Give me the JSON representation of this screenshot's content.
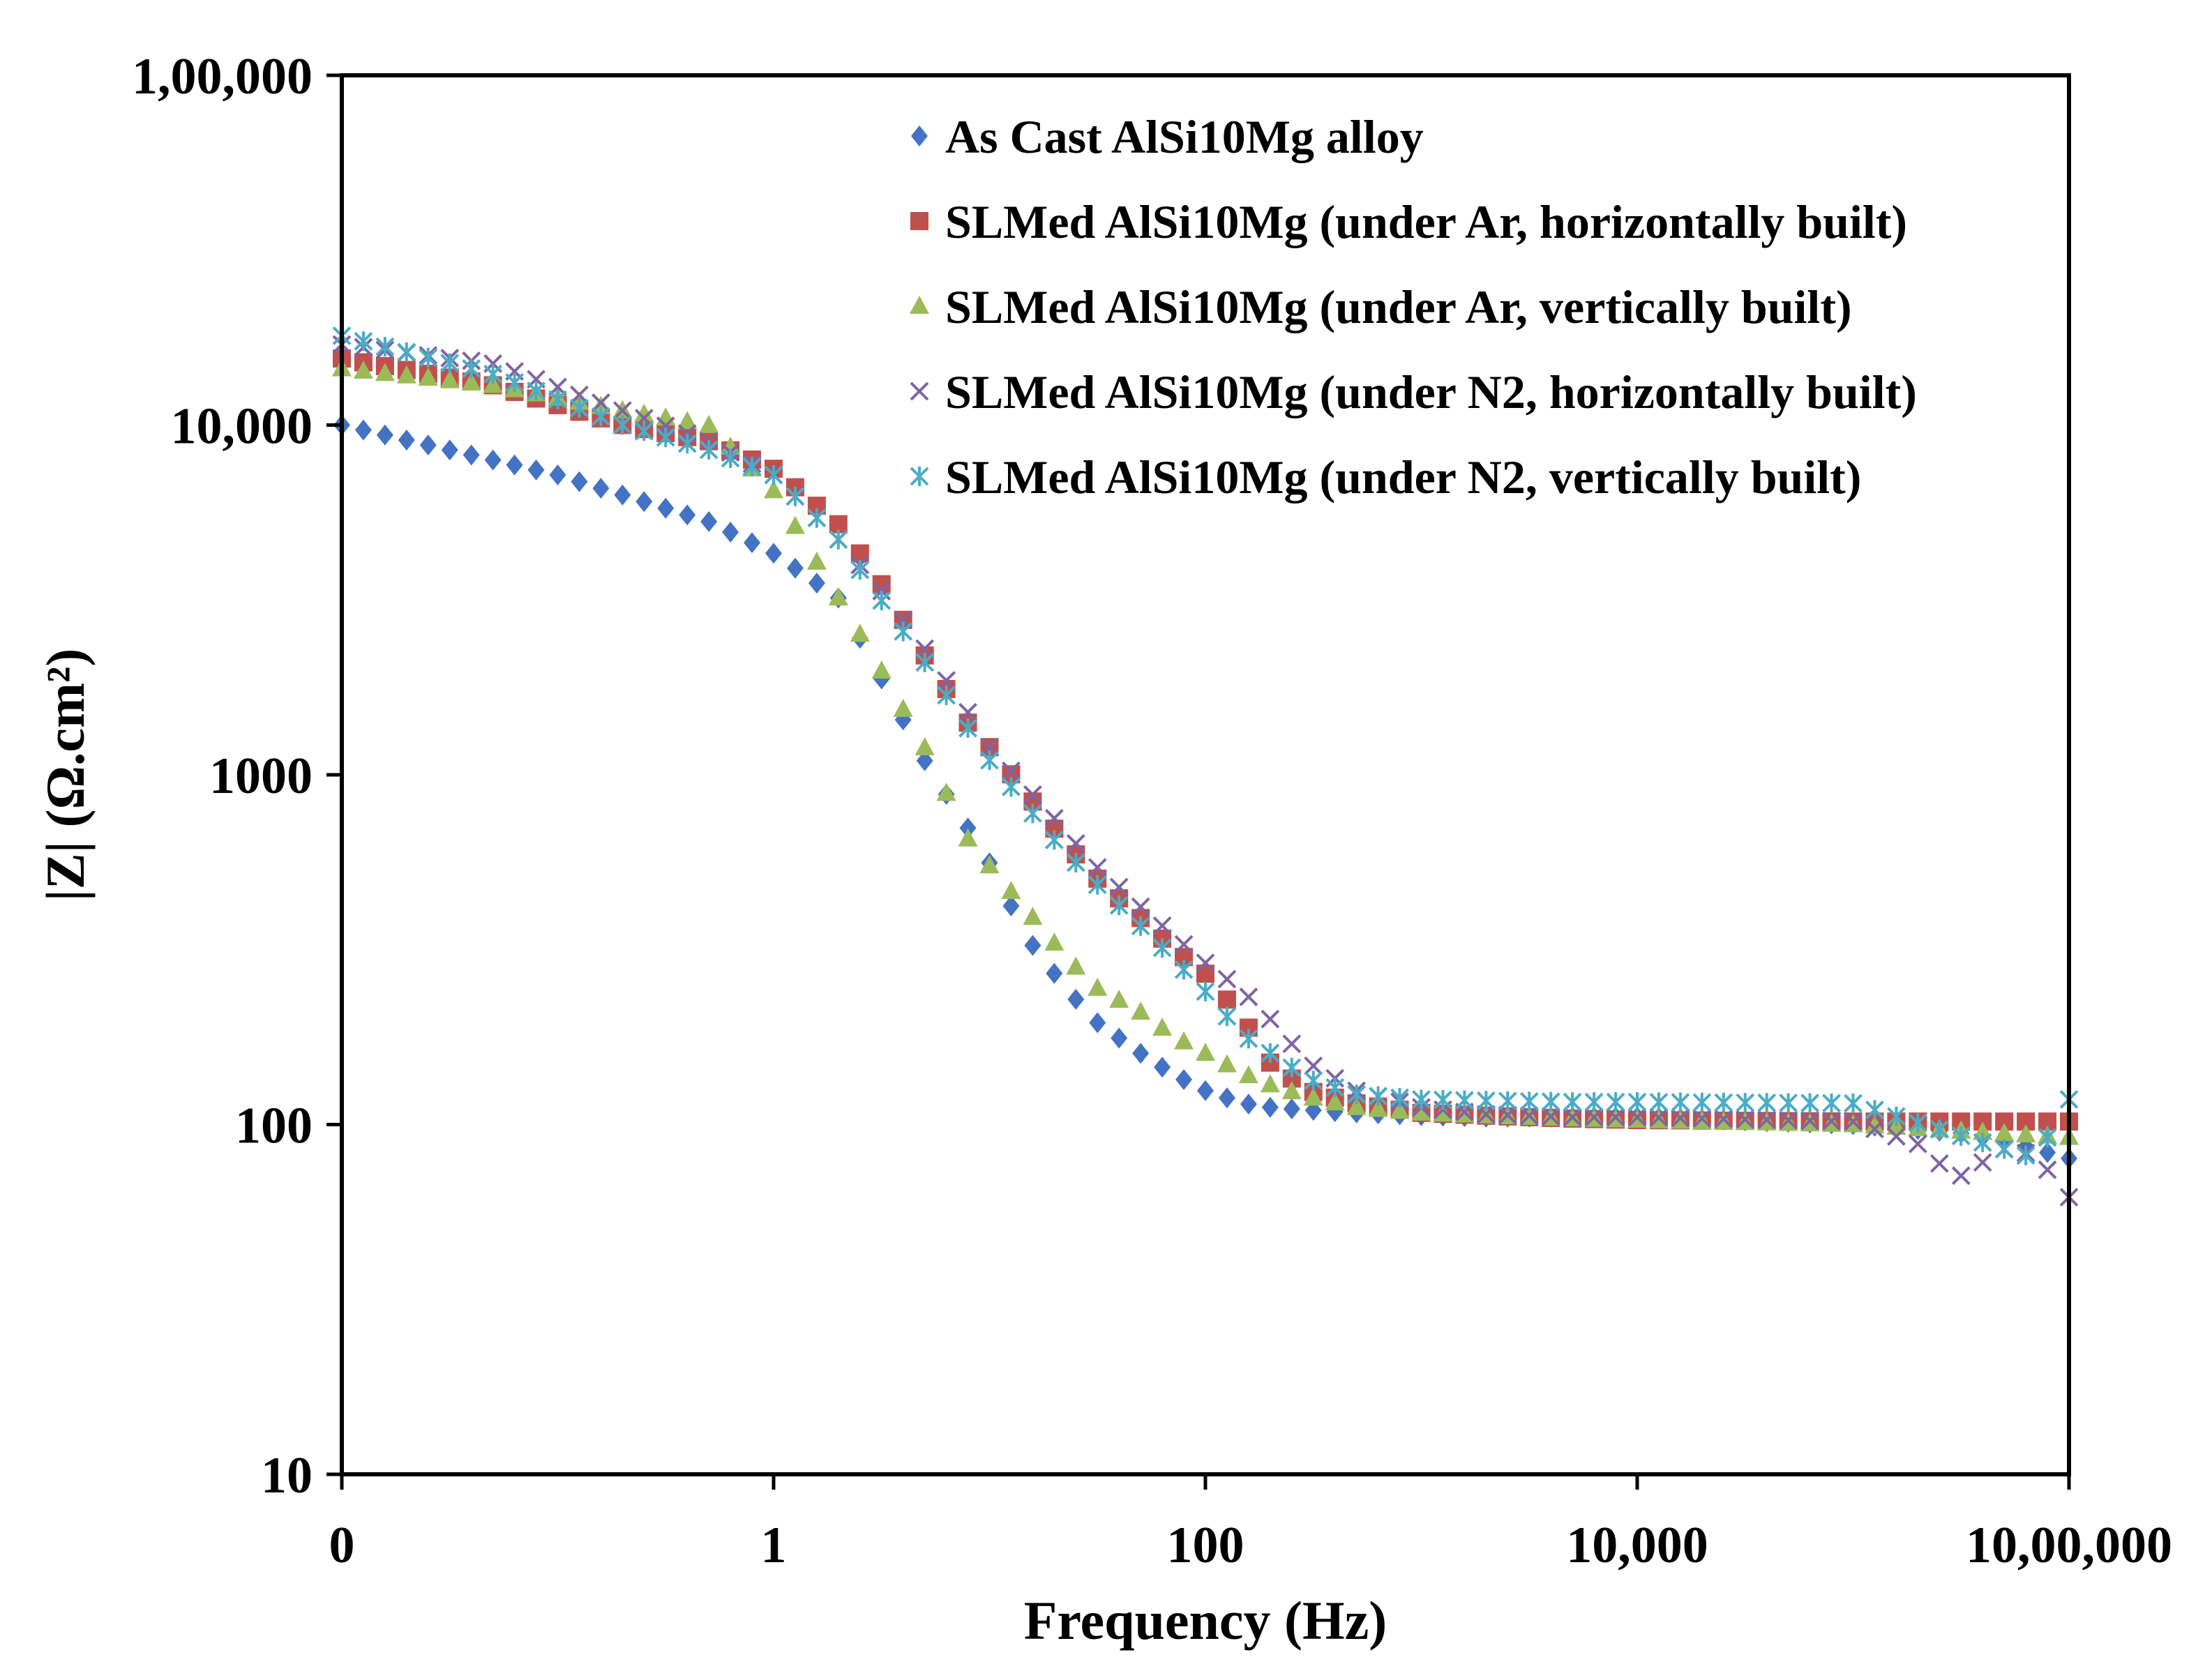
{
  "chart_data": {
    "type": "scatter",
    "xscale": "log",
    "yscale": "log",
    "xlim": [
      0.01,
      1000000
    ],
    "ylim": [
      10,
      100000
    ],
    "xlabel": "Frequency (Hz)",
    "ylabel": "|Z| (Ω.cm²)",
    "xticks": [
      {
        "value": 0.01,
        "label": "0"
      },
      {
        "value": 1,
        "label": "1"
      },
      {
        "value": 100,
        "label": "100"
      },
      {
        "value": 10000,
        "label": "10,000"
      },
      {
        "value": 1000000,
        "label": "10,00,000"
      }
    ],
    "yticks": [
      {
        "value": 10,
        "label": "10"
      },
      {
        "value": 100,
        "label": "100"
      },
      {
        "value": 1000,
        "label": "1000"
      },
      {
        "value": 10000,
        "label": "10,000"
      },
      {
        "value": 100000,
        "label": "1,00,000"
      }
    ],
    "grid": false,
    "legend_position": "top-right",
    "series": [
      {
        "name": "As Cast AlSi10Mg alloy",
        "marker": "diamond",
        "color": "#4472C4",
        "x": [
          0.01,
          0.1,
          0.5,
          1,
          2,
          3,
          5,
          8,
          10,
          15,
          20,
          30,
          50,
          70,
          100,
          150,
          200,
          300,
          500,
          1000,
          2000,
          5000,
          10000,
          100000,
          300000,
          500000,
          700000,
          1000000
        ],
        "y": [
          10000,
          7200,
          5300,
          4300,
          3200,
          2000,
          1100,
          700,
          560,
          340,
          270,
          200,
          160,
          140,
          125,
          115,
          112,
          110,
          108,
          106,
          105,
          105,
          105,
          100,
          95,
          90,
          85,
          80
        ]
      },
      {
        "name": "SLMed AlSi10Mg (under Ar, horizontally built)",
        "marker": "square",
        "color": "#C0504D",
        "x": [
          0.01,
          0.05,
          0.2,
          0.5,
          1,
          2,
          3,
          5,
          8,
          10,
          20,
          30,
          50,
          70,
          100,
          150,
          200,
          300,
          500,
          1000,
          2000,
          5000,
          10000,
          100000,
          1000000
        ],
        "y": [
          15500,
          13000,
          10000,
          9000,
          7500,
          5200,
          3700,
          2200,
          1400,
          1200,
          700,
          520,
          390,
          320,
          270,
          200,
          150,
          125,
          115,
          108,
          106,
          104,
          103,
          102,
          102
        ]
      },
      {
        "name": "SLMed AlSi10Mg (under Ar, vertically built)",
        "marker": "triangle",
        "color": "#9BBB59",
        "x": [
          0.01,
          0.05,
          0.2,
          0.5,
          1,
          2,
          3,
          5,
          8,
          10,
          20,
          30,
          50,
          70,
          100,
          150,
          200,
          300,
          500,
          1000,
          2000,
          5000,
          10000,
          100000,
          1000000
        ],
        "y": [
          14500,
          13000,
          11000,
          10000,
          6500,
          3200,
          2100,
          1200,
          650,
          550,
          330,
          250,
          210,
          180,
          160,
          140,
          130,
          120,
          112,
          108,
          106,
          104,
          103,
          100,
          92
        ]
      },
      {
        "name": "SLMed AlSi10Mg (under N2, horizontally built)",
        "marker": "x",
        "color": "#8064A2",
        "x": [
          0.01,
          0.05,
          0.2,
          0.5,
          1,
          2,
          3,
          5,
          8,
          10,
          20,
          30,
          50,
          70,
          100,
          150,
          200,
          300,
          500,
          1000,
          2000,
          5000,
          10000,
          100000,
          200000,
          300000,
          500000,
          700000,
          1000000
        ],
        "y": [
          17000,
          15000,
          11000,
          9000,
          7200,
          4700,
          3500,
          2300,
          1500,
          1200,
          750,
          560,
          420,
          350,
          290,
          240,
          200,
          150,
          125,
          112,
          107,
          105,
          105,
          102,
          88,
          70,
          85,
          82,
          62
        ]
      },
      {
        "name": "SLMed AlSi10Mg (under N2, vertically built)",
        "marker": "asterisk",
        "color": "#4BACC6",
        "x": [
          0.01,
          0.05,
          0.2,
          0.5,
          1,
          2,
          3,
          5,
          8,
          10,
          20,
          30,
          50,
          70,
          100,
          150,
          200,
          300,
          500,
          1000,
          2000,
          5000,
          10000,
          100000,
          700000,
          1000000
        ],
        "y": [
          18000,
          14000,
          10000,
          8500,
          7200,
          4700,
          3300,
          2100,
          1350,
          1100,
          650,
          500,
          370,
          300,
          240,
          180,
          160,
          135,
          122,
          118,
          117,
          116,
          116,
          115,
          80,
          118
        ]
      }
    ]
  }
}
